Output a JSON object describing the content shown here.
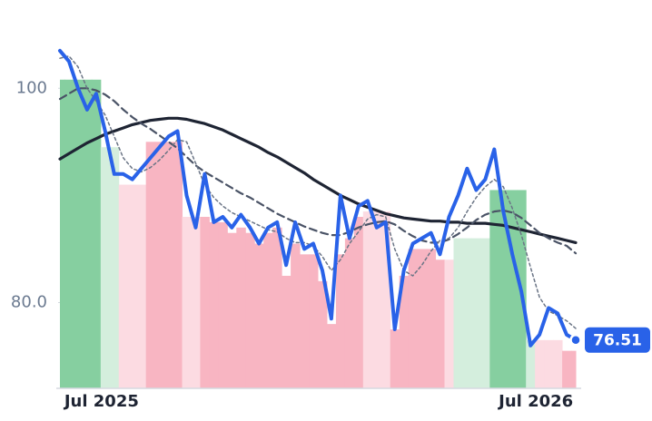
{
  "chart_data": {
    "type": "line",
    "categories": [
      null,
      null,
      null,
      null,
      "Jul 2025",
      null,
      null,
      null,
      null,
      null,
      null,
      null,
      null,
      null,
      null,
      null,
      null,
      null,
      null,
      null,
      null,
      null,
      null,
      null,
      null,
      null,
      null,
      null,
      null,
      null,
      null,
      null,
      null,
      null,
      null,
      null,
      null,
      null,
      null,
      null,
      null,
      null,
      null,
      null,
      null,
      null,
      null,
      null,
      null,
      null,
      null,
      null,
      "Jul 2026",
      null,
      null,
      null,
      null,
      null
    ],
    "ylim": [
      72,
      104
    ],
    "yticks": [
      {
        "value": 80,
        "label": "80.0"
      },
      100
    ],
    "bars": {
      "values": [
        100.8,
        100.8,
        100.8,
        100.8,
        100.8,
        94.5,
        94.5,
        91,
        91,
        91,
        95,
        95,
        95,
        95,
        88,
        88,
        88,
        87.5,
        87.5,
        86.5,
        87,
        86.5,
        85.5,
        86.5,
        87,
        82.5,
        85.5,
        84.5,
        84.5,
        82,
        78,
        84.5,
        86,
        88,
        88.5,
        88.5,
        88.5,
        77.5,
        82.5,
        85,
        85,
        85,
        84,
        84,
        86,
        86,
        86,
        86,
        90.5,
        90.5,
        90.5,
        90.5,
        76.5,
        76.5,
        76.5,
        76.5,
        75.5,
        75.5
      ],
      "colors": [
        "#86cfa0",
        "#86cfa0",
        "#86cfa0",
        "#86cfa0",
        "#86cfa0",
        "#d4eedd",
        "#d4eedd",
        "#fcdbe2",
        "#fcdbe2",
        "#fcdbe2",
        "#f8b5c2",
        "#f8b5c2",
        "#f8b5c2",
        "#f8b5c2",
        "#fcdbe2",
        "#fcdbe2",
        "#f8b5c2",
        "#f8b5c2",
        "#f8b5c2",
        "#f8b5c2",
        "#f8b5c2",
        "#f8b5c2",
        "#f8b5c2",
        "#f8b5c2",
        "#f8b5c2",
        "#f8b5c2",
        "#f8b5c2",
        "#f8b5c2",
        "#f8b5c2",
        "#f8b5c2",
        "#f8b5c2",
        "#f8b5c2",
        "#f8b5c2",
        "#f8b5c2",
        "#fcdbe2",
        "#fcdbe2",
        "#fcdbe2",
        "#f8b5c2",
        "#f8b5c2",
        "#f8b5c2",
        "#f8b5c2",
        "#f8b5c2",
        "#f8b5c2",
        "#fcdbe2",
        "#d4eedd",
        "#d4eedd",
        "#d4eedd",
        "#d4eedd",
        "#86cfa0",
        "#86cfa0",
        "#86cfa0",
        "#86cfa0",
        "#d4eedd",
        "#fcdbe2",
        "#fcdbe2",
        "#fcdbe2",
        "#f8b5c2",
        "#f8b5c2"
      ]
    },
    "series": [
      {
        "color": "#1e2433",
        "style": "solid",
        "values": [
          93.4,
          93.9,
          94.4,
          94.9,
          95.3,
          95.7,
          96.0,
          96.3,
          96.6,
          96.8,
          97.0,
          97.1,
          97.2,
          97.2,
          97.1,
          96.9,
          96.7,
          96.4,
          96.1,
          95.7,
          95.3,
          94.9,
          94.5,
          94.0,
          93.6,
          93.1,
          92.6,
          92.1,
          91.5,
          91.0,
          90.5,
          90.0,
          89.6,
          89.2,
          88.9,
          88.6,
          88.3,
          88.1,
          87.9,
          87.8,
          87.7,
          87.6,
          87.6,
          87.5,
          87.5,
          87.4,
          87.4,
          87.4,
          87.3,
          87.2,
          87.0,
          86.8,
          86.6,
          86.4,
          86.2,
          86.0,
          85.8,
          85.6
        ]
      },
      {
        "color": "#4a5366",
        "style": "dashed",
        "values": [
          99.0,
          99.5,
          100.0,
          100.0,
          99.8,
          99.4,
          98.8,
          98.0,
          97.3,
          96.7,
          96.2,
          95.6,
          95.0,
          94.4,
          93.6,
          92.8,
          92.2,
          91.7,
          91.2,
          90.7,
          90.2,
          89.8,
          89.3,
          88.8,
          88.3,
          87.9,
          87.5,
          87.1,
          86.8,
          86.5,
          86.3,
          86.3,
          86.6,
          87.0,
          87.3,
          87.5,
          87.6,
          87.3,
          86.7,
          86.2,
          85.8,
          85.6,
          85.6,
          85.9,
          86.4,
          87.0,
          87.7,
          88.2,
          88.5,
          88.6,
          88.4,
          87.9,
          87.2,
          86.5,
          86.0,
          85.6,
          85.3,
          84.6
        ]
      },
      {
        "color": "#6b7586",
        "style": "dotted",
        "values": [
          102.8,
          103.0,
          102.0,
          100.0,
          98.8,
          97.5,
          95.5,
          93.5,
          92.5,
          92.2,
          92.6,
          93.3,
          94.2,
          95.2,
          95.0,
          93.0,
          91.0,
          89.8,
          89.0,
          88.4,
          88.0,
          87.6,
          87.2,
          86.8,
          86.6,
          86.0,
          85.6,
          85.6,
          85.3,
          84.3,
          83.0,
          84.0,
          85.5,
          86.6,
          87.8,
          88.2,
          88.0,
          85.0,
          83.0,
          82.5,
          83.5,
          84.8,
          85.8,
          86.0,
          87.0,
          88.5,
          89.8,
          90.8,
          91.5,
          90.8,
          88.8,
          86.3,
          83.3,
          80.5,
          79.2,
          78.8,
          78.3,
          77.6
        ]
      },
      {
        "color": "#2962e8",
        "style": "main",
        "values": [
          103.5,
          102.5,
          100,
          98,
          99.5,
          96,
          92,
          92,
          91.5,
          92.5,
          93.5,
          94.5,
          95.5,
          96,
          90,
          87,
          92,
          87.5,
          88,
          87,
          88.2,
          87,
          85.5,
          87,
          87.5,
          83.5,
          87.5,
          85,
          85.5,
          83,
          78.5,
          90,
          86,
          89,
          89.5,
          87,
          87.5,
          77.5,
          83,
          85.5,
          86,
          86.5,
          84.5,
          88,
          90,
          92.5,
          90.5,
          91.5,
          94.3,
          88.5,
          84.5,
          81,
          76,
          77,
          79.5,
          79,
          77,
          76.51
        ]
      }
    ]
  }
}
